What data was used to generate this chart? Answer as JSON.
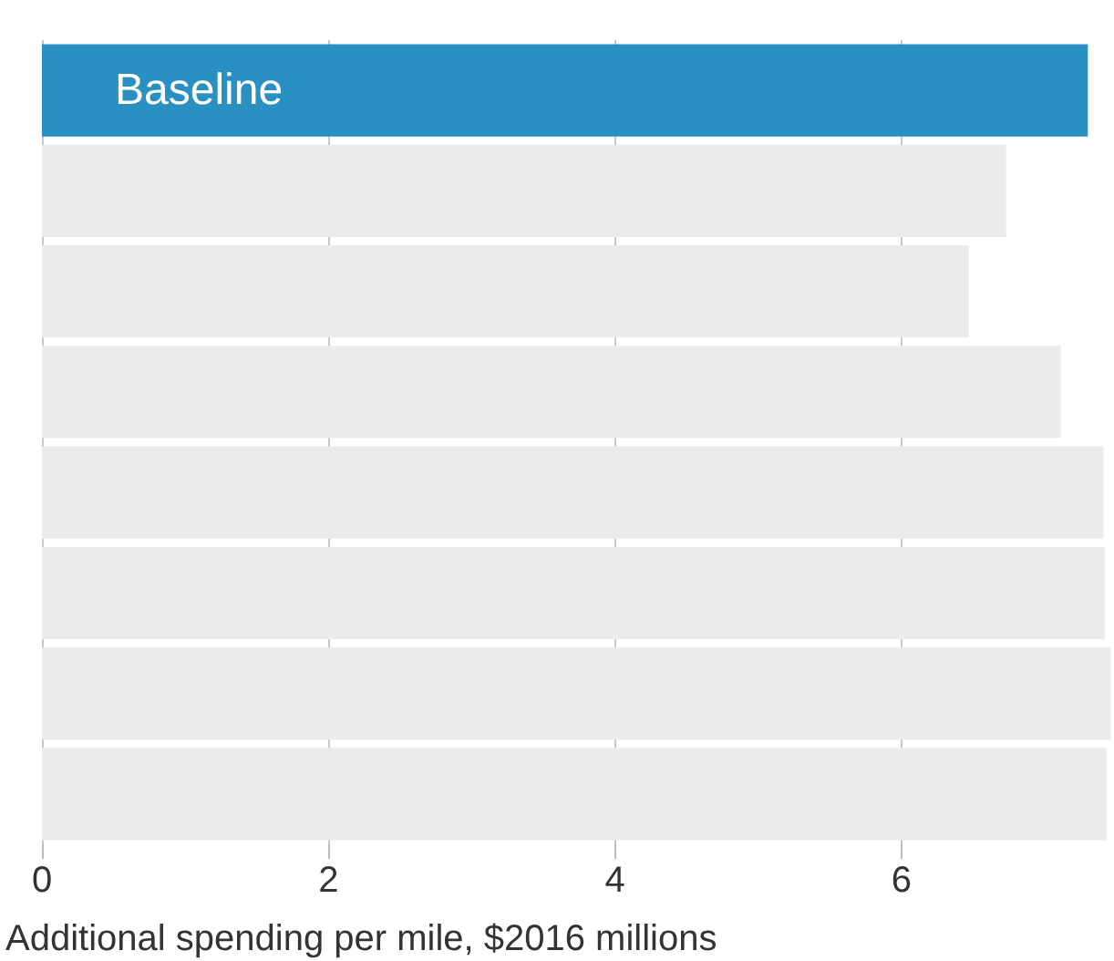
{
  "chart_data": {
    "type": "bar",
    "orientation": "horizontal",
    "xlabel": "Additional spending per mile, $2016 millions",
    "categories": [
      "Baseline",
      null,
      null,
      null,
      null,
      null,
      null,
      null
    ],
    "values": [
      7.3,
      6.73,
      6.47,
      7.11,
      7.41,
      7.42,
      7.46,
      7.43
    ],
    "colors": [
      "#2a8fc1",
      "#ebebeb",
      "#ebebeb",
      "#ebebeb",
      "#ebebeb",
      "#ebebeb",
      "#ebebeb",
      "#ebebeb"
    ],
    "xlim": [
      0,
      7.47
    ],
    "xticks": [
      0,
      2,
      4,
      6
    ],
    "grid": "x"
  }
}
